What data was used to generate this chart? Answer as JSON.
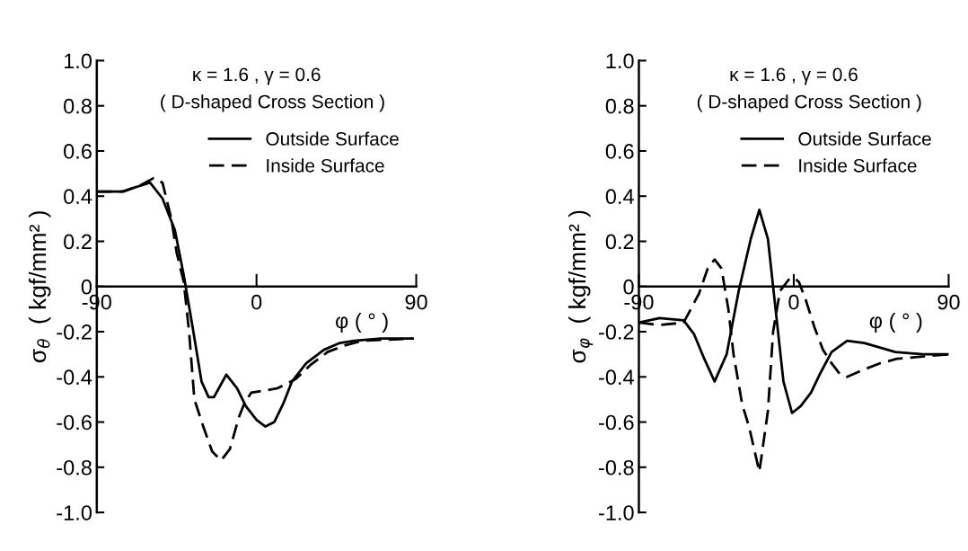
{
  "chart_data": [
    {
      "type": "line",
      "title": "κ = 1.6 , γ = 0.6",
      "subtitle": "( D-shaped Cross Section )",
      "xlabel": "φ ( ° )",
      "ylabel": "σ$_{θ}$  ( kgf/mm² )",
      "xlim": [
        -90,
        90
      ],
      "xticks": [
        -90,
        0,
        90
      ],
      "ylim": [
        -1.0,
        1.0
      ],
      "yticks": [
        {
          "value": -1.0,
          "label": "-1.0"
        },
        {
          "value": -0.8,
          "label": "-0.8"
        },
        {
          "value": -0.6,
          "label": "-0.6"
        },
        {
          "value": -0.4,
          "label": "-0.4"
        },
        {
          "value": -0.2,
          "label": "-0.2"
        },
        0,
        {
          "value": 0.2,
          "label": "0.2"
        },
        {
          "value": 0.4,
          "label": "0.4"
        },
        {
          "value": 0.6,
          "label": "0.6"
        },
        {
          "value": 0.8,
          "label": "0.8"
        },
        {
          "value": 1.0,
          "label": "1.0"
        }
      ],
      "grid": false,
      "legend": "top right",
      "marker": "none",
      "series": [
        {
          "name": "Outside Surface",
          "color": "#000000",
          "line_style": "solid",
          "x": [
            -90,
            -76,
            -60,
            -53,
            -46,
            -41,
            -36,
            -31,
            -27,
            -24,
            -17,
            -11,
            -6,
            0,
            5,
            10,
            15,
            20,
            28,
            38,
            47,
            55,
            70,
            88
          ],
          "values": [
            0.42,
            0.42,
            0.46,
            0.39,
            0.25,
            0.05,
            -0.18,
            -0.42,
            -0.49,
            -0.49,
            -0.39,
            -0.45,
            -0.53,
            -0.59,
            -0.62,
            -0.6,
            -0.52,
            -0.42,
            -0.34,
            -0.28,
            -0.25,
            -0.24,
            -0.23,
            -0.23
          ]
        },
        {
          "name": "Inside Surface",
          "color": "#000000",
          "line_style": "dashed",
          "x": [
            -90,
            -75,
            -65,
            -58,
            -53,
            -48,
            -45,
            -41,
            -38,
            -35,
            -30,
            -25,
            -20,
            -15,
            -10,
            -7,
            -3,
            5,
            12,
            22,
            30,
            40,
            50,
            60,
            88
          ],
          "values": [
            0.42,
            0.42,
            0.45,
            0.48,
            0.46,
            0.3,
            0.15,
            0.02,
            -0.2,
            -0.5,
            -0.62,
            -0.73,
            -0.77,
            -0.72,
            -0.58,
            -0.52,
            -0.47,
            -0.46,
            -0.45,
            -0.41,
            -0.35,
            -0.29,
            -0.26,
            -0.24,
            -0.23
          ]
        }
      ]
    },
    {
      "type": "line",
      "title": "κ = 1.6 , γ = 0.6",
      "subtitle": "( D-shaped Cross Section )",
      "xlabel": "φ ( ° )",
      "ylabel": "σ$_{φ}$  ( kgf/mm² )",
      "xlim": [
        -90,
        90
      ],
      "xticks": [
        -90,
        0,
        90
      ],
      "ylim": [
        -1.0,
        1.0
      ],
      "yticks": [
        {
          "value": -1.0,
          "label": "-1.0"
        },
        {
          "value": -0.8,
          "label": "-0.8"
        },
        {
          "value": -0.6,
          "label": "-0.6"
        },
        {
          "value": -0.4,
          "label": "-0.4"
        },
        {
          "value": -0.2,
          "label": "-0.2"
        },
        0,
        {
          "value": 0.2,
          "label": "0.2"
        },
        {
          "value": 0.4,
          "label": "0.4"
        },
        {
          "value": 0.6,
          "label": "0.6"
        },
        {
          "value": 0.8,
          "label": "0.8"
        },
        {
          "value": 1.0,
          "label": "1.0"
        }
      ],
      "grid": false,
      "legend": "top right",
      "marker": "none",
      "series": [
        {
          "name": "Outside Surface",
          "color": "#000000",
          "line_style": "solid",
          "x": [
            -90,
            -78,
            -64,
            -58,
            -52,
            -46,
            -39,
            -32,
            -25,
            -20,
            -15,
            -11,
            -6,
            -1,
            4,
            10,
            15,
            22,
            31,
            41,
            59,
            75,
            90
          ],
          "values": [
            -0.16,
            -0.14,
            -0.15,
            -0.21,
            -0.32,
            -0.42,
            -0.3,
            -0.02,
            0.21,
            0.34,
            0.21,
            -0.07,
            -0.42,
            -0.56,
            -0.53,
            -0.47,
            -0.39,
            -0.29,
            -0.24,
            -0.25,
            -0.29,
            -0.3,
            -0.3
          ]
        },
        {
          "name": "Inside Surface",
          "color": "#000000",
          "line_style": "dashed",
          "x": [
            -90,
            -78,
            -64,
            -55,
            -50,
            -46,
            -42,
            -38,
            -35,
            -30,
            -26,
            -20,
            -15,
            -12,
            -8,
            -3,
            0,
            3,
            7,
            12,
            17,
            22,
            27,
            31,
            40,
            50,
            60,
            75,
            90
          ],
          "values": [
            -0.16,
            -0.17,
            -0.16,
            -0.03,
            0.08,
            0.12,
            0.08,
            -0.1,
            -0.3,
            -0.52,
            -0.62,
            -0.82,
            -0.55,
            -0.2,
            -0.02,
            0.03,
            0.04,
            0.02,
            -0.06,
            -0.18,
            -0.28,
            -0.34,
            -0.39,
            -0.4,
            -0.37,
            -0.34,
            -0.32,
            -0.31,
            -0.3
          ]
        }
      ]
    }
  ]
}
